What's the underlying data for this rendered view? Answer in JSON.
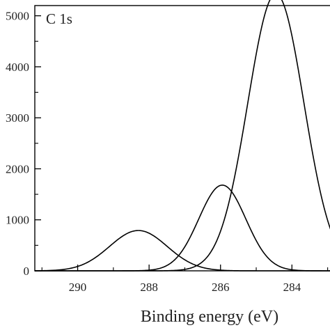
{
  "chart_data": {
    "type": "line",
    "panel_label": "C 1s",
    "xlabel": "Binding energy (eV)",
    "ylabel": "",
    "x_reversed": true,
    "xlim": [
      291.2,
      282.7
    ],
    "ylim": [
      0,
      5200
    ],
    "x_ticks": [
      290,
      288,
      286,
      284
    ],
    "x_tick_labels": [
      "290",
      "288",
      "286",
      "284"
    ],
    "y_ticks": [
      0,
      1000,
      2000,
      3000,
      4000,
      5000
    ],
    "y_tick_labels": [
      "0",
      "1000",
      "2000",
      "3000",
      "4000",
      "5000"
    ],
    "grid": false,
    "series": [
      {
        "center": 288.3,
        "height": 790,
        "fwhm": 1.9,
        "color": "#000000"
      },
      {
        "center": 285.95,
        "height": 1680,
        "fwhm": 1.55,
        "color": "#000000"
      },
      {
        "center": 284.45,
        "height": 5430,
        "fwhm": 1.85,
        "color": "#000000"
      }
    ]
  }
}
